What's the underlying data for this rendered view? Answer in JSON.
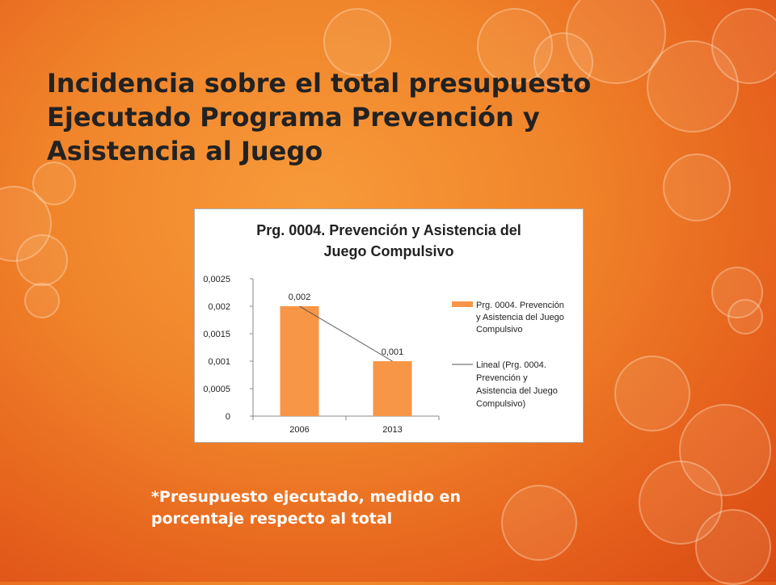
{
  "slide": {
    "title_lines": [
      "Incidencia sobre el total presupuesto",
      "Ejecutado Programa Prevención y",
      "Asistencia al Juego"
    ],
    "footnote_lines": [
      "*Presupuesto ejecutado, medido en",
      "porcentaje respecto al total"
    ]
  },
  "chart_data": {
    "type": "bar",
    "title_lines": [
      "Prg. 0004. Prevención y Asistencia del",
      "Juego Compulsivo"
    ],
    "categories": [
      "2006",
      "2013"
    ],
    "values": [
      0.002,
      0.001
    ],
    "data_labels": [
      "0,002",
      "0,001"
    ],
    "ylim": [
      0,
      0.0025
    ],
    "yticks": [
      0,
      0.0005,
      0.001,
      0.0015,
      0.002,
      0.0025
    ],
    "ytick_labels": [
      "0",
      "0,0005",
      "0,001",
      "0,0015",
      "0,002",
      "0,0025"
    ],
    "bar_color": "#f79646",
    "trendline_color": "#555555",
    "grid": false,
    "legend_position": "right",
    "legend": {
      "bar_lines": [
        "Prg. 0004. Prevención",
        "y Asistencia del Juego",
        "Compulsivo"
      ],
      "line_lines": [
        "Lineal (Prg. 0004.",
        "Prevención y",
        "Asistencia del Juego",
        "Compulsivo)"
      ]
    }
  }
}
